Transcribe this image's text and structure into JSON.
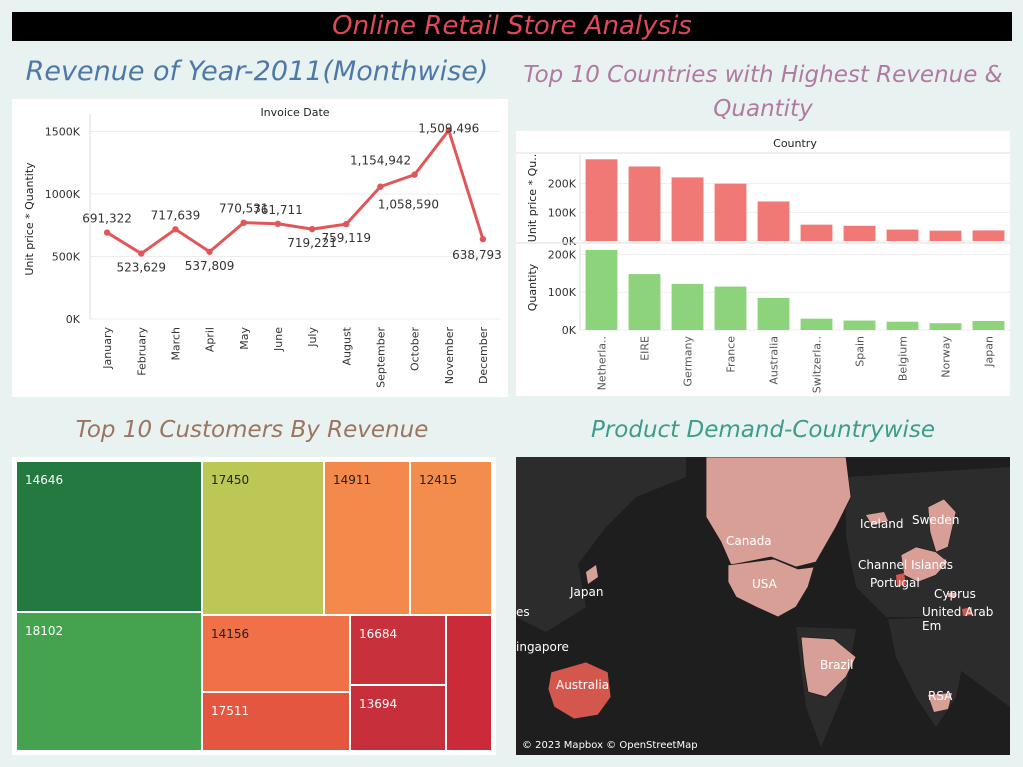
{
  "page_title": "Online Retail Store Analysis",
  "sections": {
    "revenue": "Revenue of Year-2011(Monthwise)",
    "countries": "Top 10 Countries with Highest Revenue & Quantity",
    "customers": "Top 10 Customers By Revenue",
    "map": "Product Demand-Countrywise"
  },
  "chart_data": [
    {
      "type": "line",
      "title": "Invoice Date",
      "xlabel": "",
      "ylabel": "Unit price * Quantity",
      "ylim": [
        0,
        1600000
      ],
      "yticks": [
        0,
        500000,
        1000000,
        1500000
      ],
      "yticklabels": [
        "0K",
        "500K",
        "1000K",
        "1500K"
      ],
      "categories": [
        "January",
        "February",
        "March",
        "April",
        "May",
        "June",
        "July",
        "August",
        "September",
        "October",
        "November",
        "December"
      ],
      "values": [
        691322,
        523629,
        717639,
        537809,
        770531,
        761711,
        719221,
        759119,
        1058590,
        1154942,
        1509496,
        638793
      ],
      "data_labels": [
        "691,322",
        "523,629",
        "717,639",
        "537,809",
        "770,531",
        "761,711",
        "719,221",
        "759,119",
        "1,058,590",
        "1,154,942",
        "1,509,496",
        "638,793"
      ],
      "color": "#e15759",
      "grid": true
    },
    {
      "type": "bar",
      "title": "Country",
      "categories": [
        "Netherla..",
        "EIRE",
        "Germany",
        "France",
        "Australia",
        "Switzerla..",
        "Spain",
        "Belgium",
        "Norway",
        "Japan"
      ],
      "series": [
        {
          "name": "Unit price * Qu..",
          "values": [
            285000,
            260000,
            222000,
            200000,
            138000,
            57000,
            53000,
            40000,
            36000,
            37000
          ],
          "ylim": [
            0,
            300000
          ],
          "yticklabels": [
            "0K",
            "100K",
            "200K"
          ],
          "color": "#f07875"
        },
        {
          "name": "Quantity",
          "values": [
            212000,
            148000,
            122000,
            115000,
            85000,
            30000,
            25000,
            22000,
            18000,
            24000
          ],
          "ylim": [
            0,
            225000
          ],
          "yticklabels": [
            "0K",
            "100K",
            "200K"
          ],
          "color": "#8dd37c"
        }
      ]
    },
    {
      "type": "treemap",
      "title": "",
      "items": [
        {
          "label": "14646",
          "color": "#23793f"
        },
        {
          "label": "18102",
          "color": "#45a24f"
        },
        {
          "label": "17450",
          "color": "#bdc756"
        },
        {
          "label": "14911",
          "color": "#f4894c"
        },
        {
          "label": "12415",
          "color": "#f38d4c"
        },
        {
          "label": "14156",
          "color": "#f07047"
        },
        {
          "label": "17511",
          "color": "#e55641"
        },
        {
          "label": "16684",
          "color": "#c8313b"
        },
        {
          "label": "13694",
          "color": "#c72f3a"
        },
        {
          "label": "",
          "color": "#cb2b39"
        }
      ]
    }
  ],
  "map": {
    "labels": [
      "Iceland",
      "Sweden",
      "Canada",
      "Channel Islands",
      "Portugal",
      "USA",
      "Japan",
      "Cyprus",
      "United Arab Em",
      "es",
      "ingapore",
      "Australia",
      "Brazil",
      "RSA"
    ],
    "credit": "© 2023 Mapbox © OpenStreetMap",
    "land_color": "#2c2c2c",
    "highlight_color": "#d89f97"
  }
}
